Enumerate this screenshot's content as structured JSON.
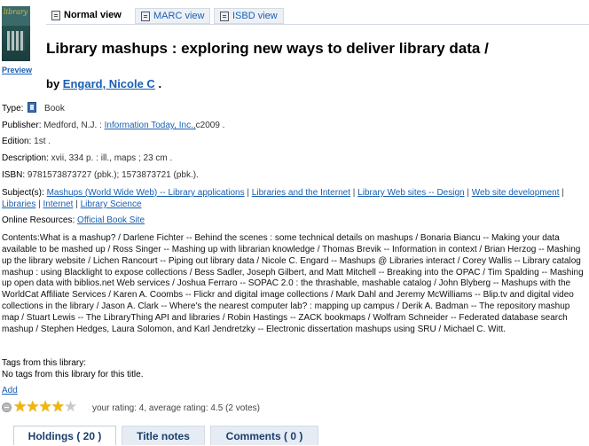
{
  "view_tabs": [
    {
      "label": "Normal view",
      "active": true
    },
    {
      "label": "MARC view",
      "active": false
    },
    {
      "label": "ISBD view",
      "active": false
    }
  ],
  "cover": {
    "preview_label": "Preview",
    "cover_text": "library"
  },
  "title": "Library mashups : exploring new ways to deliver library data /",
  "byline": {
    "prefix": "by",
    "author": "Engard, Nicole C",
    "suffix": "."
  },
  "details": {
    "type_label": "Type:",
    "type_value": "Book",
    "publisher_label": "Publisher:",
    "publisher_place": "Medford, N.J. :",
    "publisher_name": "Information Today, Inc.,",
    "publisher_year": "c2009 .",
    "edition_label": "Edition:",
    "edition_value": "1st .",
    "description_label": "Description:",
    "description_value": "xvii, 334 p. : ill., maps ; 23 cm .",
    "isbn_label": "ISBN:",
    "isbn_value": "9781573873727 (pbk.); 1573873721 (pbk.).",
    "subjects_label": "Subject(s):",
    "subjects": [
      "Mashups (World Wide Web) -- Library applications",
      "Libraries and the Internet",
      "Library Web sites -- Design",
      "Web site development",
      "Libraries",
      "Internet",
      "Library Science"
    ],
    "online_label": "Online Resources:",
    "online_link": "Official Book Site",
    "contents_label": "Contents:",
    "contents_text": "What is a mashup? / Darlene Fichter -- Behind the scenes : some technical details on mashups / Bonaria Biancu -- Making your data available to be mashed up / Ross Singer -- Mashing up with librarian knowledge / Thomas Brevik -- Information in context / Brian Herzog -- Mashing up the library website / Lichen Rancourt -- Piping out library data / Nicole C. Engard -- Mashups @ Libraries interact / Corey Wallis -- Library catalog mashup : using Blacklight to expose collections / Bess Sadler, Joseph Gilbert, and Matt Mitchell -- Breaking into the OPAC / Tim Spalding -- Mashing up open data with biblios.net Web services / Joshua Ferraro -- SOPAC 2.0 : the thrashable, mashable catalog / John Blyberg -- Mashups with the WorldCat Affiliate Services / Karen A. Coombs -- Flickr and digital image collections / Mark Dahl and Jeremy McWilliams -- Blip.tv and digital video collections in the library / Jason A. Clark -- Where's the nearest computer lab? : mapping up campus / Derik A. Badman -- The repository mashup map / Stuart Lewis -- The LibraryThing API and libraries / Robin Hastings -- ZACK bookmaps / Wolfram Schneider -- Federated database search mashup / Stephen Hedges, Laura Solomon, and Karl Jendretzky -- Electronic dissertation mashups using SRU / Michael C. Witt."
  },
  "tags": {
    "label": "Tags from this library:",
    "empty_text": "No tags from this library for this title.",
    "add_label": "Add"
  },
  "rating": {
    "stars": 4,
    "max": 5,
    "text": "your rating: 4, average rating: 4.5 (2 votes)"
  },
  "bottom_tabs": [
    {
      "label": "Holdings ( 20 )",
      "active": true
    },
    {
      "label": "Title notes",
      "active": false
    },
    {
      "label": "Comments ( 0 )",
      "active": false
    }
  ],
  "colors": {
    "link": "#1a5fb4",
    "star": "#f2b705"
  }
}
